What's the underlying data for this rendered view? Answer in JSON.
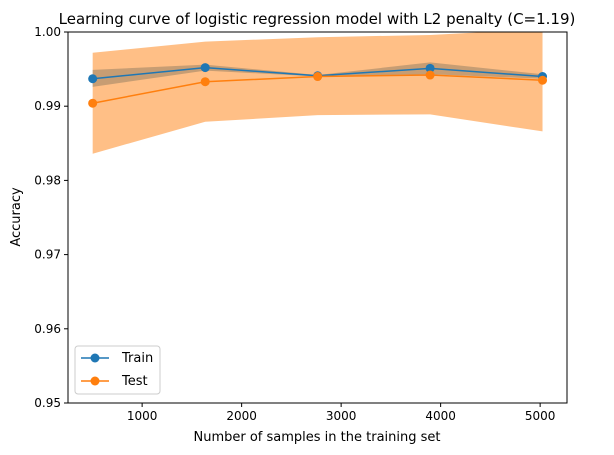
{
  "chart_data": {
    "type": "line",
    "title": "Learning curve of logistic regression model with L2 penalty (C=1.19)",
    "xlabel": "Number of samples in the training set",
    "ylabel": "Accuracy",
    "xlim": [
      255,
      5270
    ],
    "ylim": [
      0.95,
      1.0
    ],
    "xticks": [
      1000,
      2000,
      3000,
      4000,
      5000
    ],
    "yticks": [
      0.95,
      0.96,
      0.97,
      0.98,
      0.99,
      1.0
    ],
    "ytick_labels": [
      "0.95",
      "0.96",
      "0.97",
      "0.98",
      "0.99",
      "1.00"
    ],
    "grid": false,
    "legend_position": "lower-left",
    "x": [
      503,
      1634,
      2764,
      3894,
      5024
    ],
    "series": [
      {
        "name": "Train",
        "color": "#1f77b4",
        "values": [
          0.9937,
          0.9952,
          0.9941,
          0.9951,
          0.994
        ],
        "band_lower": [
          0.9926,
          0.9948,
          0.994,
          0.9943,
          0.9937
        ],
        "band_upper": [
          0.9949,
          0.9956,
          0.9942,
          0.9959,
          0.9943
        ]
      },
      {
        "name": "Test",
        "color": "#ff7f0e",
        "values": [
          0.9904,
          0.9933,
          0.994,
          0.9942,
          0.9935
        ],
        "band_lower": [
          0.9836,
          0.9879,
          0.9888,
          0.9889,
          0.9866
        ],
        "band_upper": [
          0.9972,
          0.9987,
          0.9993,
          0.9996,
          1.0004
        ]
      }
    ]
  }
}
